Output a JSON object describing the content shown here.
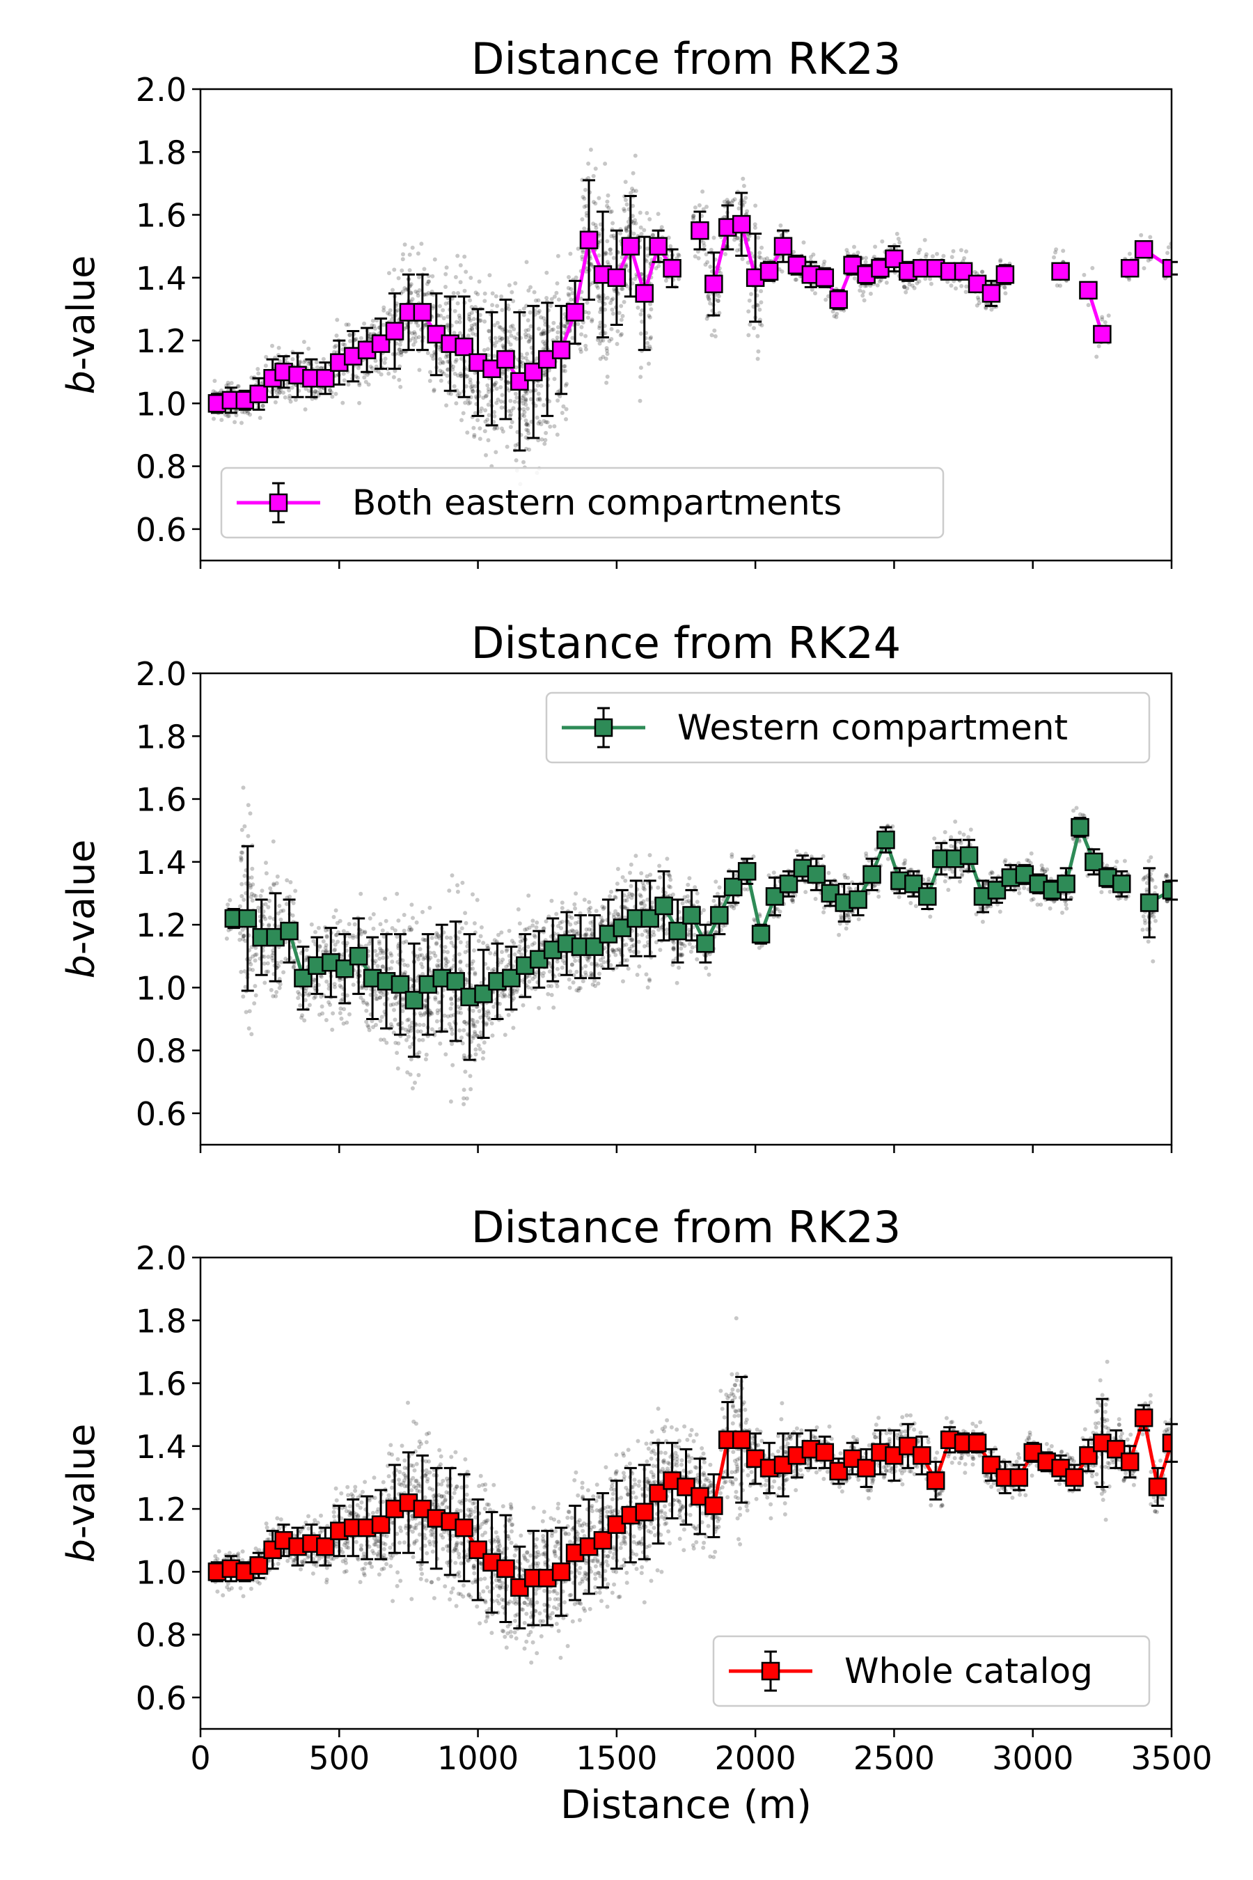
{
  "chart_data": [
    {
      "type": "scatter",
      "title": "Distance from RK23",
      "xlabel": "",
      "ylabel_italic": "b",
      "ylabel_rest": "-value",
      "xlim": [
        0,
        3500
      ],
      "ylim": [
        0.5,
        2.0
      ],
      "yticks": [
        "0.6",
        "0.8",
        "1.0",
        "1.2",
        "1.4",
        "1.6",
        "1.8",
        "2.0"
      ],
      "xticks": [],
      "grid": false,
      "legend": {
        "position": "lower-left",
        "label": "Both eastern compartments"
      },
      "series": [
        {
          "name": "Both eastern compartments",
          "color": "#ff00ff",
          "marker": "square",
          "x": [
            60,
            110,
            160,
            210,
            260,
            300,
            350,
            400,
            450,
            500,
            550,
            600,
            650,
            700,
            750,
            800,
            850,
            900,
            950,
            1000,
            1050,
            1100,
            1150,
            1200,
            1250,
            1300,
            1350,
            1400,
            1450,
            1500,
            1550,
            1600,
            1650,
            1700,
            1800,
            1850,
            1900,
            1950,
            2000,
            2050,
            2100,
            2150,
            2200,
            2250,
            2300,
            2350,
            2400,
            2450,
            2500,
            2550,
            2600,
            2650,
            2700,
            2750,
            2800,
            2850,
            2900,
            3100,
            3200,
            3250,
            3350,
            3400,
            3500
          ],
          "y": [
            1.0,
            1.01,
            1.01,
            1.03,
            1.08,
            1.1,
            1.09,
            1.08,
            1.08,
            1.13,
            1.15,
            1.17,
            1.19,
            1.23,
            1.29,
            1.29,
            1.22,
            1.19,
            1.18,
            1.13,
            1.11,
            1.14,
            1.07,
            1.1,
            1.14,
            1.17,
            1.29,
            1.52,
            1.41,
            1.4,
            1.5,
            1.35,
            1.5,
            1.43,
            1.55,
            1.38,
            1.56,
            1.57,
            1.4,
            1.42,
            1.5,
            1.44,
            1.41,
            1.4,
            1.33,
            1.44,
            1.41,
            1.43,
            1.46,
            1.42,
            1.43,
            1.43,
            1.42,
            1.42,
            1.38,
            1.35,
            1.41,
            1.42,
            1.36,
            1.22,
            1.43,
            1.49,
            1.43
          ],
          "err": [
            0.03,
            0.04,
            0.03,
            0.05,
            0.06,
            0.05,
            0.07,
            0.06,
            0.05,
            0.07,
            0.08,
            0.07,
            0.08,
            0.12,
            0.12,
            0.12,
            0.13,
            0.15,
            0.16,
            0.17,
            0.18,
            0.19,
            0.22,
            0.21,
            0.18,
            0.14,
            0.1,
            0.19,
            0.2,
            0.15,
            0.16,
            0.18,
            0.05,
            0.06,
            0.06,
            0.1,
            0.07,
            0.1,
            0.14,
            0.03,
            0.05,
            0.03,
            0.04,
            0.03,
            0.03,
            0.03,
            0.03,
            0.03,
            0.04,
            0.03,
            0.02,
            0.02,
            0.02,
            0.02,
            0.02,
            0.04,
            0.03,
            0.02,
            0.02,
            0.02,
            0.02,
            0.02,
            0.02
          ],
          "line_breaks_after_x": [
            1700,
            1800,
            2900,
            3100,
            3250
          ]
        }
      ]
    },
    {
      "type": "scatter",
      "title": "Distance from RK24",
      "xlabel": "",
      "ylabel_italic": "b",
      "ylabel_rest": "-value",
      "xlim": [
        0,
        3500
      ],
      "ylim": [
        0.5,
        2.0
      ],
      "yticks": [
        "0.6",
        "0.8",
        "1.0",
        "1.2",
        "1.4",
        "1.6",
        "1.8",
        "2.0"
      ],
      "xticks": [],
      "grid": false,
      "legend": {
        "position": "upper-right",
        "label": "Western compartment"
      },
      "series": [
        {
          "name": "Western compartment",
          "color": "#2e8b57",
          "marker": "square",
          "x": [
            120,
            170,
            220,
            270,
            320,
            370,
            420,
            470,
            520,
            570,
            620,
            670,
            720,
            770,
            820,
            870,
            920,
            970,
            1020,
            1070,
            1120,
            1170,
            1220,
            1270,
            1320,
            1370,
            1420,
            1470,
            1520,
            1570,
            1620,
            1670,
            1720,
            1770,
            1820,
            1870,
            1920,
            1970,
            2020,
            2070,
            2120,
            2170,
            2220,
            2270,
            2320,
            2370,
            2420,
            2470,
            2520,
            2570,
            2620,
            2670,
            2720,
            2770,
            2820,
            2870,
            2920,
            2970,
            3020,
            3070,
            3120,
            3170,
            3220,
            3270,
            3320,
            3420,
            3500
          ],
          "y": [
            1.22,
            1.22,
            1.16,
            1.16,
            1.18,
            1.03,
            1.07,
            1.08,
            1.06,
            1.1,
            1.03,
            1.02,
            1.01,
            0.96,
            1.01,
            1.03,
            1.02,
            0.97,
            0.98,
            1.02,
            1.03,
            1.07,
            1.09,
            1.12,
            1.14,
            1.13,
            1.13,
            1.17,
            1.19,
            1.22,
            1.22,
            1.26,
            1.18,
            1.23,
            1.14,
            1.23,
            1.32,
            1.37,
            1.17,
            1.29,
            1.33,
            1.38,
            1.36,
            1.3,
            1.27,
            1.28,
            1.36,
            1.47,
            1.34,
            1.33,
            1.29,
            1.41,
            1.41,
            1.42,
            1.29,
            1.31,
            1.35,
            1.36,
            1.33,
            1.31,
            1.33,
            1.51,
            1.4,
            1.35,
            1.33,
            1.27,
            1.31
          ],
          "err": [
            0.03,
            0.23,
            0.12,
            0.14,
            0.1,
            0.1,
            0.09,
            0.11,
            0.11,
            0.12,
            0.13,
            0.15,
            0.16,
            0.18,
            0.16,
            0.17,
            0.19,
            0.2,
            0.14,
            0.12,
            0.1,
            0.1,
            0.09,
            0.1,
            0.1,
            0.1,
            0.1,
            0.11,
            0.12,
            0.12,
            0.12,
            0.11,
            0.1,
            0.08,
            0.06,
            0.06,
            0.05,
            0.04,
            0.03,
            0.06,
            0.04,
            0.04,
            0.05,
            0.04,
            0.06,
            0.05,
            0.05,
            0.04,
            0.04,
            0.04,
            0.04,
            0.05,
            0.06,
            0.05,
            0.05,
            0.04,
            0.04,
            0.03,
            0.03,
            0.03,
            0.05,
            0.03,
            0.04,
            0.03,
            0.04,
            0.11,
            0.03
          ],
          "line_breaks_after_x": [
            3320
          ]
        }
      ]
    },
    {
      "type": "scatter",
      "title": "Distance from RK23",
      "xlabel": "Distance (m)",
      "ylabel_italic": "b",
      "ylabel_rest": "-value",
      "xlim": [
        0,
        3500
      ],
      "ylim": [
        0.5,
        2.0
      ],
      "yticks": [
        "0.6",
        "0.8",
        "1.0",
        "1.2",
        "1.4",
        "1.6",
        "1.8",
        "2.0"
      ],
      "xticks": [
        "0",
        "500",
        "1000",
        "1500",
        "2000",
        "2500",
        "3000",
        "3500"
      ],
      "grid": false,
      "legend": {
        "position": "lower-right",
        "label": "Whole catalog"
      },
      "series": [
        {
          "name": "Whole catalog",
          "color": "#ff0000",
          "marker": "square",
          "x": [
            60,
            110,
            160,
            210,
            260,
            300,
            350,
            400,
            450,
            500,
            550,
            600,
            650,
            700,
            750,
            800,
            850,
            900,
            950,
            1000,
            1050,
            1100,
            1150,
            1200,
            1250,
            1300,
            1350,
            1400,
            1450,
            1500,
            1550,
            1600,
            1650,
            1700,
            1750,
            1800,
            1850,
            1900,
            1950,
            2000,
            2050,
            2100,
            2150,
            2200,
            2250,
            2300,
            2350,
            2400,
            2450,
            2500,
            2550,
            2600,
            2650,
            2700,
            2750,
            2800,
            2850,
            2900,
            2950,
            3000,
            3050,
            3100,
            3150,
            3200,
            3250,
            3300,
            3350,
            3400,
            3450,
            3500
          ],
          "y": [
            1.0,
            1.01,
            1.0,
            1.02,
            1.07,
            1.1,
            1.08,
            1.09,
            1.08,
            1.13,
            1.14,
            1.14,
            1.15,
            1.2,
            1.22,
            1.2,
            1.17,
            1.16,
            1.14,
            1.07,
            1.03,
            1.01,
            0.95,
            0.98,
            0.98,
            1.0,
            1.06,
            1.08,
            1.1,
            1.15,
            1.18,
            1.19,
            1.25,
            1.29,
            1.27,
            1.24,
            1.21,
            1.42,
            1.42,
            1.36,
            1.33,
            1.34,
            1.37,
            1.39,
            1.38,
            1.32,
            1.36,
            1.33,
            1.38,
            1.37,
            1.4,
            1.37,
            1.29,
            1.42,
            1.41,
            1.41,
            1.34,
            1.3,
            1.3,
            1.38,
            1.35,
            1.33,
            1.3,
            1.37,
            1.41,
            1.39,
            1.35,
            1.49,
            1.27,
            1.41
          ],
          "err": [
            0.03,
            0.04,
            0.03,
            0.04,
            0.06,
            0.05,
            0.06,
            0.06,
            0.06,
            0.08,
            0.09,
            0.1,
            0.11,
            0.14,
            0.16,
            0.17,
            0.16,
            0.17,
            0.17,
            0.16,
            0.16,
            0.17,
            0.13,
            0.15,
            0.15,
            0.14,
            0.15,
            0.15,
            0.15,
            0.14,
            0.15,
            0.15,
            0.16,
            0.12,
            0.12,
            0.12,
            0.1,
            0.12,
            0.2,
            0.08,
            0.08,
            0.1,
            0.07,
            0.06,
            0.05,
            0.04,
            0.05,
            0.06,
            0.07,
            0.08,
            0.07,
            0.06,
            0.06,
            0.04,
            0.03,
            0.03,
            0.05,
            0.05,
            0.04,
            0.03,
            0.03,
            0.04,
            0.04,
            0.05,
            0.14,
            0.06,
            0.05,
            0.04,
            0.06,
            0.06
          ],
          "line_breaks_after_x": []
        }
      ]
    }
  ]
}
